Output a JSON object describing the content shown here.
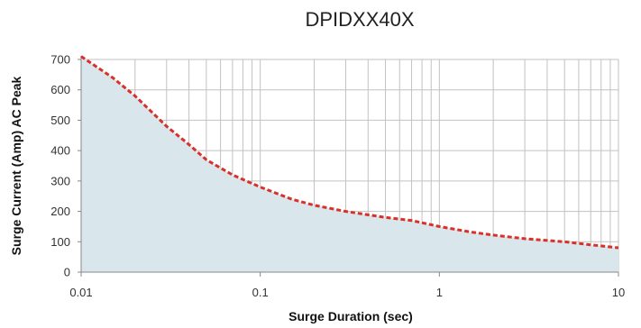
{
  "chart_data": {
    "type": "area",
    "title": "DPIDXX40X",
    "xlabel": "Surge Duration (sec)",
    "ylabel": "Surge Current (Amp) AC Peak",
    "x_scale": "log",
    "xlim": [
      0.01,
      10
    ],
    "ylim": [
      0,
      700
    ],
    "x_ticks": [
      0.01,
      0.1,
      1,
      10
    ],
    "x_tick_labels": [
      "0.01",
      "0.1",
      "1",
      "10"
    ],
    "y_ticks": [
      0,
      100,
      200,
      300,
      400,
      500,
      600,
      700
    ],
    "y_tick_labels": [
      "0",
      "100",
      "200",
      "300",
      "400",
      "500",
      "600",
      "700"
    ],
    "grid": true,
    "series": [
      {
        "style": "dashed",
        "color": "#d9302a",
        "fill_color": "#d9e6ec",
        "x": [
          0.01,
          0.015,
          0.02,
          0.03,
          0.04,
          0.05,
          0.07,
          0.1,
          0.15,
          0.2,
          0.3,
          0.5,
          0.7,
          1,
          1.5,
          2,
          3,
          5,
          7,
          10
        ],
        "y": [
          710,
          640,
          580,
          480,
          420,
          370,
          320,
          280,
          240,
          220,
          200,
          180,
          170,
          150,
          132,
          122,
          110,
          100,
          90,
          80
        ]
      }
    ]
  }
}
